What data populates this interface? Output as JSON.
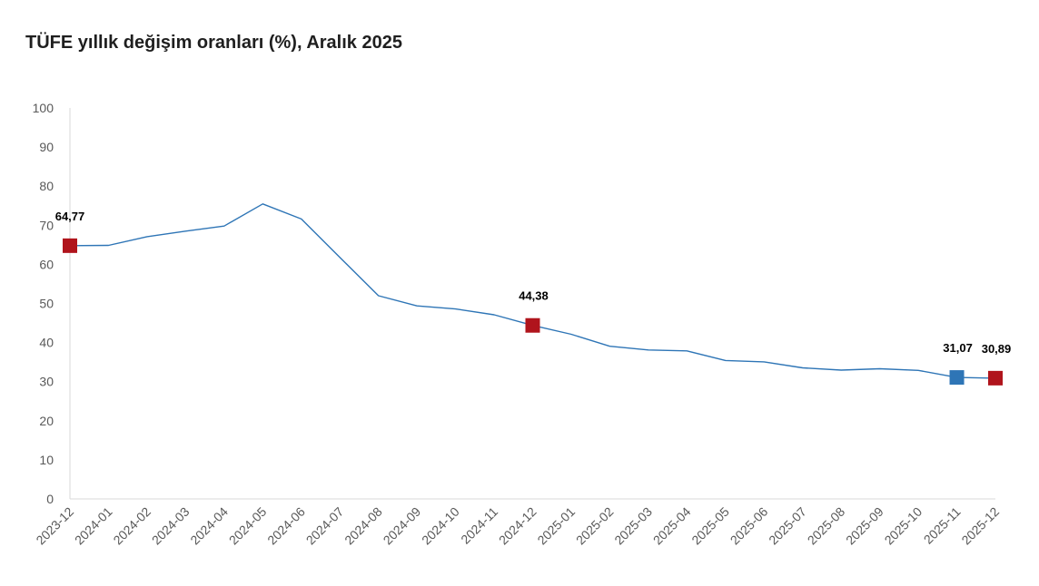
{
  "chart_data": {
    "type": "line",
    "title": "TÜFE yıllık değişim oranları (%), Aralık 2025",
    "xlabel": "",
    "ylabel": "",
    "ylim": [
      0,
      100
    ],
    "yticks": [
      0,
      10,
      20,
      30,
      40,
      50,
      60,
      70,
      80,
      90,
      100
    ],
    "categories": [
      "2023-12",
      "2024-01",
      "2024-02",
      "2024-03",
      "2024-04",
      "2024-05",
      "2024-06",
      "2024-07",
      "2024-08",
      "2024-09",
      "2024-10",
      "2024-11",
      "2024-12",
      "2025-01",
      "2025-02",
      "2025-03",
      "2025-04",
      "2025-05",
      "2025-06",
      "2025-07",
      "2025-08",
      "2025-09",
      "2025-10",
      "2025-11",
      "2025-12"
    ],
    "values": [
      64.77,
      64.86,
      67.07,
      68.5,
      69.8,
      75.45,
      71.6,
      61.78,
      51.97,
      49.38,
      48.58,
      47.09,
      44.38,
      42.12,
      39.05,
      38.1,
      37.86,
      35.41,
      35.05,
      33.52,
      32.95,
      33.29,
      32.87,
      31.07,
      30.89
    ],
    "line_color": "#2e75b6",
    "grid": false,
    "highlighted_points": [
      {
        "index": 0,
        "label": "64,77",
        "color": "#b0141c"
      },
      {
        "index": 12,
        "label": "44,38",
        "color": "#b0141c"
      },
      {
        "index": 23,
        "label": "31,07",
        "color": "#2e75b6"
      },
      {
        "index": 24,
        "label": "30,89",
        "color": "#b0141c"
      }
    ]
  }
}
